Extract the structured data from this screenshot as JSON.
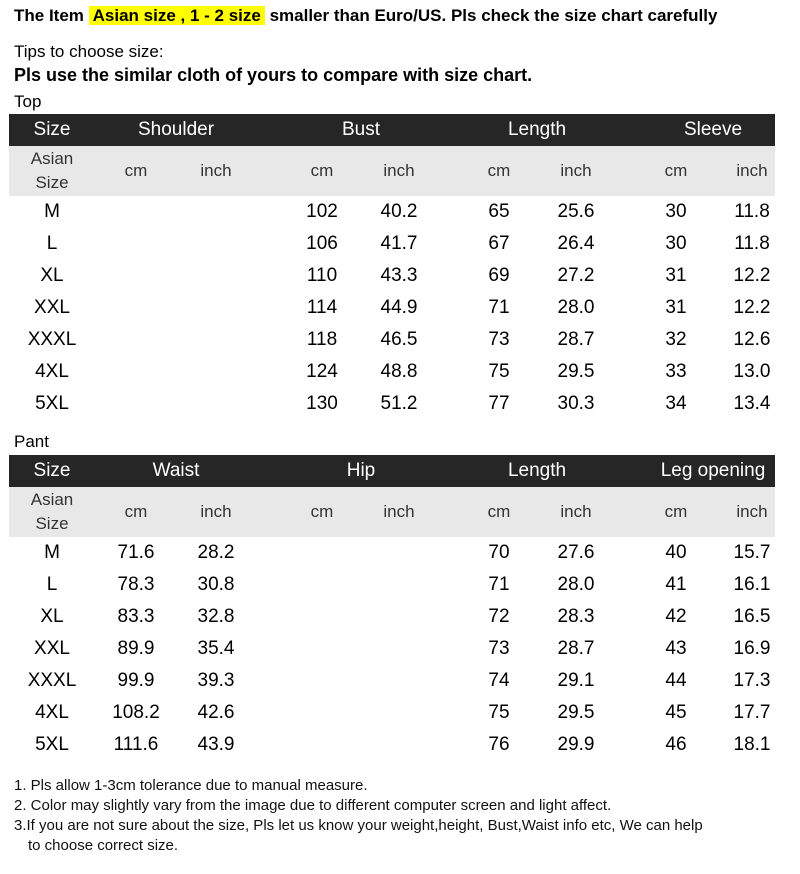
{
  "header": {
    "prefix": "The Item",
    "highlight": "Asian size , 1 - 2 size",
    "suffix": "smaller than Euro/US. Pls check the size chart carefully",
    "highlight_color": "#ffff00"
  },
  "tips": {
    "line1": "Tips to choose size:",
    "line2": "Pls use the similar cloth of yours to compare with size chart."
  },
  "colors": {
    "header_bg": "#262626",
    "subheader_bg": "#e8e8e8"
  },
  "top": {
    "label": "Top",
    "columns": [
      "Size",
      "Shoulder",
      "Bust",
      "Length",
      "Sleeve"
    ],
    "sub": {
      "asian": [
        "Asian",
        "Size"
      ],
      "units": [
        "cm",
        "inch",
        "cm",
        "inch",
        "cm",
        "inch",
        "cm",
        "inch"
      ]
    },
    "rows": [
      {
        "size": "M",
        "cells": [
          "",
          "",
          "102",
          "40.2",
          "65",
          "25.6",
          "30",
          "11.8"
        ]
      },
      {
        "size": "L",
        "cells": [
          "",
          "",
          "106",
          "41.7",
          "67",
          "26.4",
          "30",
          "11.8"
        ]
      },
      {
        "size": "XL",
        "cells": [
          "",
          "",
          "110",
          "43.3",
          "69",
          "27.2",
          "31",
          "12.2"
        ]
      },
      {
        "size": "XXL",
        "cells": [
          "",
          "",
          "114",
          "44.9",
          "71",
          "28.0",
          "31",
          "12.2"
        ]
      },
      {
        "size": "XXXL",
        "cells": [
          "",
          "",
          "118",
          "46.5",
          "73",
          "28.7",
          "32",
          "12.6"
        ]
      },
      {
        "size": "4XL",
        "cells": [
          "",
          "",
          "124",
          "48.8",
          "75",
          "29.5",
          "33",
          "13.0"
        ]
      },
      {
        "size": "5XL",
        "cells": [
          "",
          "",
          "130",
          "51.2",
          "77",
          "30.3",
          "34",
          "13.4"
        ]
      }
    ]
  },
  "pant": {
    "label": "Pant",
    "columns": [
      "Size",
      "Waist",
      "Hip",
      "Length",
      "Leg opening"
    ],
    "sub": {
      "asian": [
        "Asian",
        "Size"
      ],
      "units": [
        "cm",
        "inch",
        "cm",
        "inch",
        "cm",
        "inch",
        "cm",
        "inch"
      ]
    },
    "rows": [
      {
        "size": "M",
        "cells": [
          "71.6",
          "28.2",
          "",
          "",
          "70",
          "27.6",
          "40",
          "15.7"
        ]
      },
      {
        "size": "L",
        "cells": [
          "78.3",
          "30.8",
          "",
          "",
          "71",
          "28.0",
          "41",
          "16.1"
        ]
      },
      {
        "size": "XL",
        "cells": [
          "83.3",
          "32.8",
          "",
          "",
          "72",
          "28.3",
          "42",
          "16.5"
        ]
      },
      {
        "size": "XXL",
        "cells": [
          "89.9",
          "35.4",
          "",
          "",
          "73",
          "28.7",
          "43",
          "16.9"
        ]
      },
      {
        "size": "XXXL",
        "cells": [
          "99.9",
          "39.3",
          "",
          "",
          "74",
          "29.1",
          "44",
          "17.3"
        ]
      },
      {
        "size": "4XL",
        "cells": [
          "108.2",
          "42.6",
          "",
          "",
          "75",
          "29.5",
          "45",
          "17.7"
        ]
      },
      {
        "size": "5XL",
        "cells": [
          "111.6",
          "43.9",
          "",
          "",
          "76",
          "29.9",
          "46",
          "18.1"
        ]
      }
    ]
  },
  "notes": [
    "1. Pls allow 1-3cm tolerance due to manual measure.",
    "2. Color may slightly vary from the image due to different computer screen and light affect.",
    "3.If you are not sure about the size, Pls let us know your weight,height, Bust,Waist info etc, We can help",
    "to choose correct size."
  ]
}
